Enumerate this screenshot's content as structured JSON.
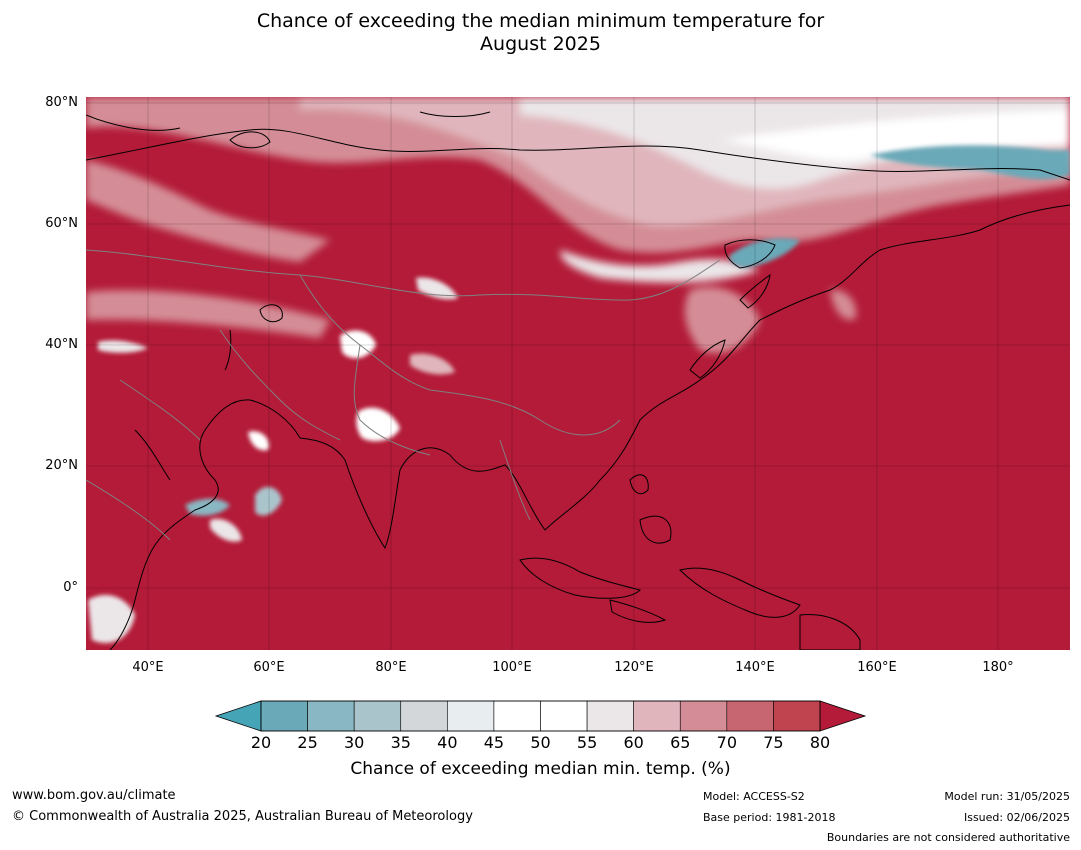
{
  "title_line1": "Chance of exceeding the median minimum temperature for",
  "title_line2": "August 2025",
  "map": {
    "region": "Asia",
    "lat_ticks": [
      "80°N",
      "60°N",
      "40°N",
      "20°N",
      "0°"
    ],
    "lon_ticks": [
      "40°E",
      "60°E",
      "80°E",
      "100°E",
      "120°E",
      "140°E",
      "160°E",
      "180°"
    ],
    "colors": {
      "above80": "#b31b38",
      "below20": "#45a4b5",
      "ocean": "#b31b38"
    }
  },
  "colorbar": {
    "label": "Chance of exceeding median min. temp. (%)",
    "ticks": [
      "20",
      "25",
      "30",
      "35",
      "40",
      "45",
      "50",
      "55",
      "60",
      "65",
      "70",
      "75",
      "80"
    ],
    "colors": [
      "#6aa9b8",
      "#89b7c3",
      "#aac4cc",
      "#d3d7d9",
      "#e8eef0",
      "#ffffff",
      "#ffffff",
      "#ebe6e8",
      "#e0b6bc",
      "#d48d96",
      "#c76570",
      "#bf4450"
    ],
    "low_arrow_color": "#45a4b5",
    "high_arrow_color": "#b31b38"
  },
  "footer": {
    "website": "www.bom.gov.au/climate",
    "copyright": "© Commonwealth of Australia 2025, Australian Bureau of Meteorology",
    "model": "Model: ACCESS-S2",
    "base_period": "Base period: 1981-2018",
    "model_run": "Model run: 31/05/2025",
    "issued": "Issued: 02/06/2025",
    "disclaimer": "Boundaries are not considered authoritative"
  }
}
